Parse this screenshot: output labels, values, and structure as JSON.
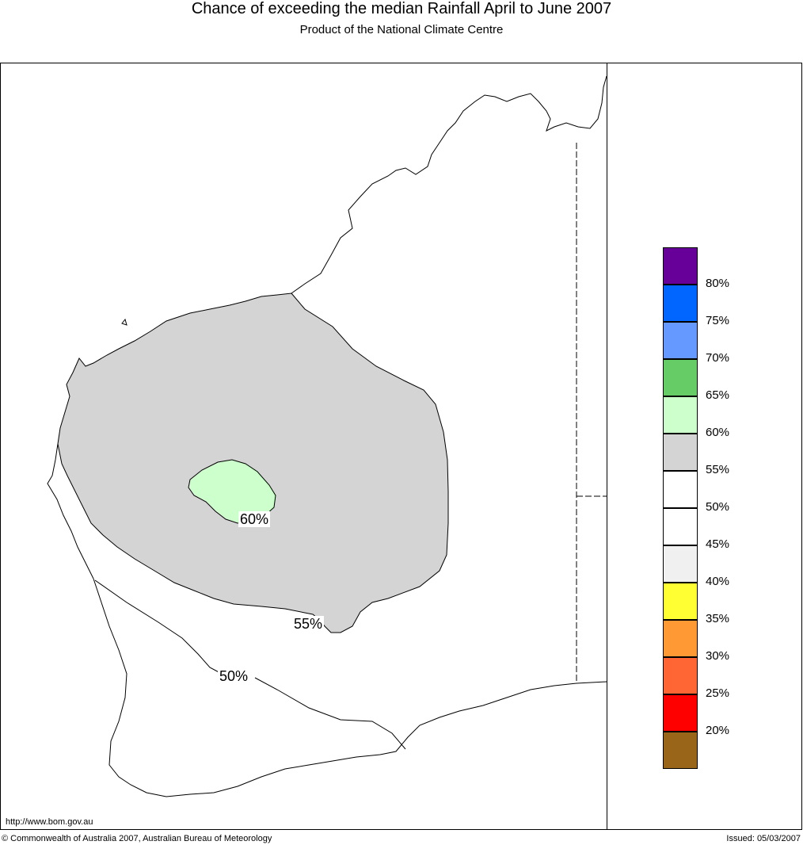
{
  "header": {
    "title": "Chance of exceeding the median Rainfall April to June 2007",
    "subtitle": "Product of the National Climate Centre"
  },
  "map": {
    "contour_labels": [
      "60%",
      "55%",
      "50%"
    ],
    "colors": {
      "region_55_60": "#d4d4d4",
      "region_60_65": "#ccffcc",
      "coast": "#000000",
      "background": "#ffffff"
    }
  },
  "legend": {
    "swatches": [
      {
        "color": "#660099"
      },
      {
        "color": "#0066ff"
      },
      {
        "color": "#6699ff"
      },
      {
        "color": "#66cc66"
      },
      {
        "color": "#ccffcc"
      },
      {
        "color": "#d4d4d4"
      },
      {
        "color": "#ffffff"
      },
      {
        "color": "#ffffff"
      },
      {
        "color": "#f0f0f0"
      },
      {
        "color": "#ffff33"
      },
      {
        "color": "#ff9933"
      },
      {
        "color": "#ff6633"
      },
      {
        "color": "#ff0000"
      },
      {
        "color": "#996619"
      }
    ],
    "labels": [
      "80%",
      "75%",
      "70%",
      "65%",
      "60%",
      "55%",
      "50%",
      "45%",
      "40%",
      "35%",
      "30%",
      "25%",
      "20%"
    ]
  },
  "footer": {
    "url": "http://www.bom.gov.au",
    "copyright": "© Commonwealth of Australia 2007, Australian Bureau of Meteorology",
    "issued": "Issued: 05/03/2007"
  }
}
